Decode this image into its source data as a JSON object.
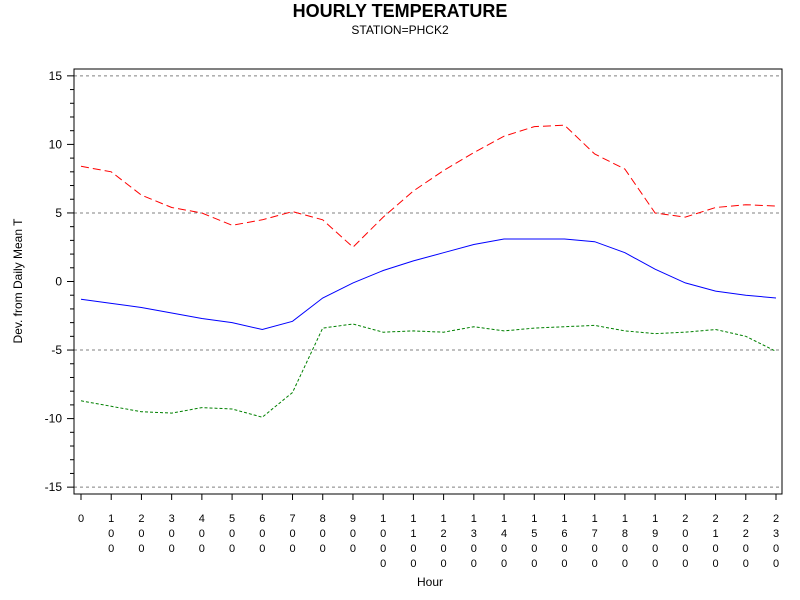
{
  "chart_data": {
    "type": "line",
    "title": "HOURLY TEMPERATURE",
    "subtitle": "STATION=PHCK2",
    "xlabel": "Hour",
    "ylabel": "Dev. from Daily Mean T",
    "x": [
      0,
      100,
      200,
      300,
      400,
      500,
      600,
      700,
      800,
      900,
      1000,
      1100,
      1200,
      1300,
      1400,
      1500,
      1600,
      1700,
      1800,
      1900,
      2000,
      2100,
      2200,
      2300
    ],
    "xticks": [
      "0",
      "100",
      "200",
      "300",
      "400",
      "500",
      "600",
      "700",
      "800",
      "900",
      "1000",
      "1100",
      "1200",
      "1300",
      "1400",
      "1500",
      "1600",
      "1700",
      "1800",
      "1900",
      "2000",
      "2100",
      "2200",
      "2300"
    ],
    "yticks": [
      "15",
      "10",
      "5",
      "0",
      "-5",
      "-10",
      "-15"
    ],
    "ytick_values": [
      15,
      10,
      5,
      0,
      -5,
      -10,
      -15
    ],
    "ylim": [
      -15.5,
      15.5
    ],
    "xlim": [
      0,
      2300
    ],
    "reference_lines": [
      15,
      5,
      -5,
      -15
    ],
    "series": [
      {
        "color": "#ff0000",
        "dash": "long-dash",
        "values": [
          8.4,
          8.0,
          6.3,
          5.4,
          5.0,
          4.1,
          4.5,
          5.1,
          4.5,
          2.5,
          4.7,
          6.6,
          8.1,
          9.4,
          10.6,
          11.3,
          11.4,
          9.3,
          8.2,
          5.0,
          4.7,
          5.4,
          5.6,
          5.5
        ]
      },
      {
        "color": "#0000ff",
        "dash": "solid",
        "values": [
          -1.3,
          -1.6,
          -1.9,
          -2.3,
          -2.7,
          -3.0,
          -3.5,
          -2.9,
          -1.2,
          -0.1,
          0.8,
          1.5,
          2.1,
          2.7,
          3.1,
          3.1,
          3.1,
          2.9,
          2.1,
          0.9,
          -0.1,
          -0.7,
          -1.0,
          -1.2
        ]
      },
      {
        "color": "#008000",
        "dash": "short-dash",
        "values": [
          -8.7,
          -9.1,
          -9.5,
          -9.6,
          -9.2,
          -9.3,
          -9.9,
          -8.1,
          -3.4,
          -3.1,
          -3.7,
          -3.6,
          -3.7,
          -3.3,
          -3.6,
          -3.4,
          -3.3,
          -3.2,
          -3.6,
          -3.8,
          -3.7,
          -3.5,
          -4.0,
          -5.1
        ]
      }
    ]
  }
}
